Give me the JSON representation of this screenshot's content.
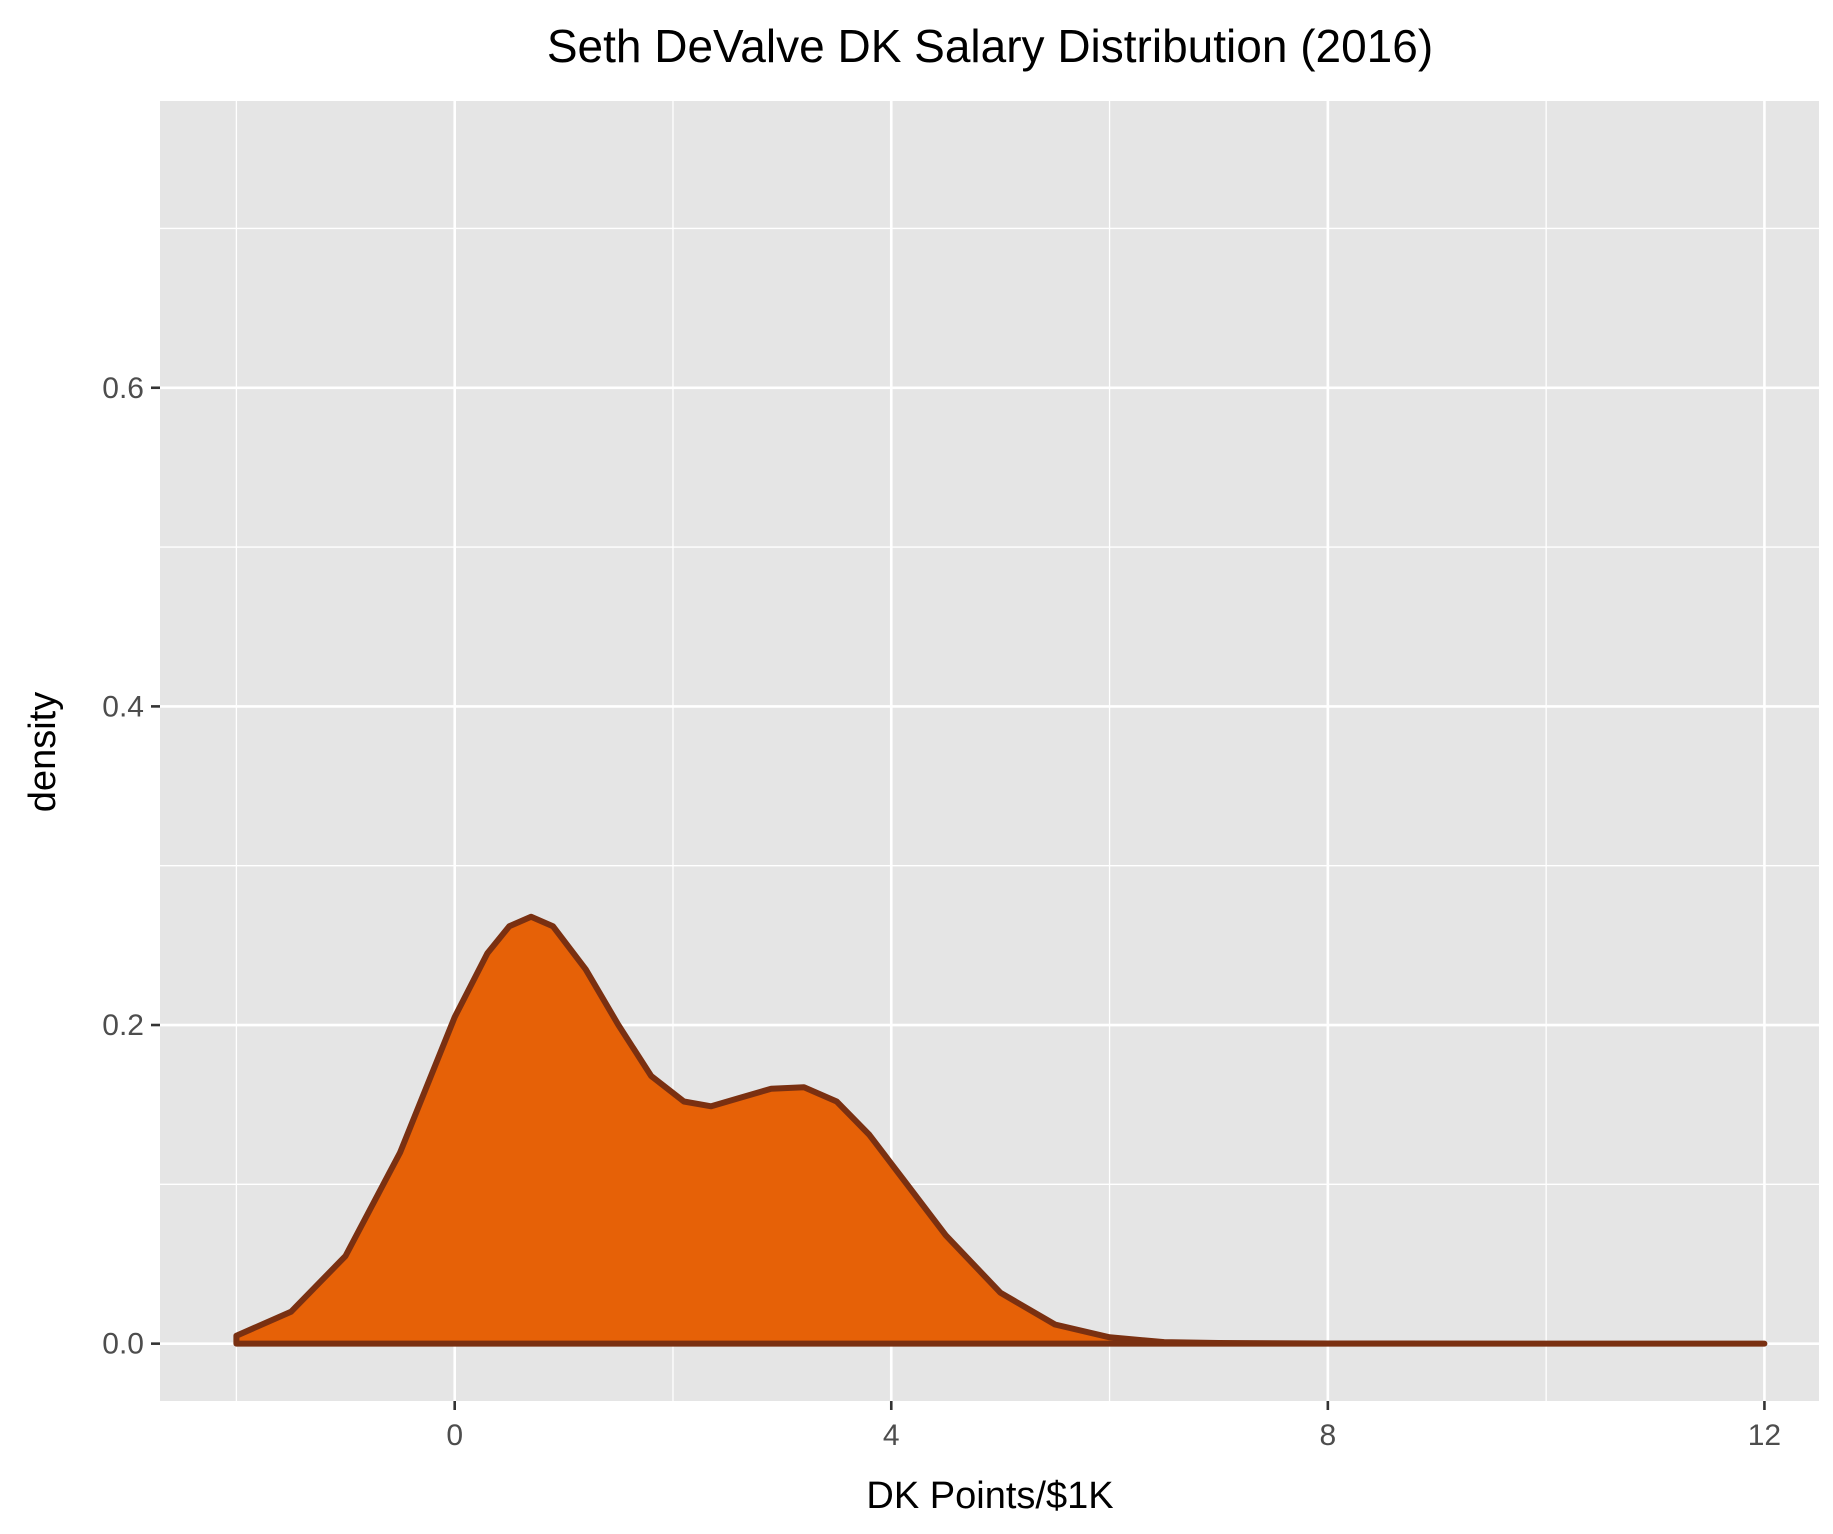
{
  "chart_data": {
    "type": "area",
    "title": "Seth DeValve DK Salary Distribution (2016)",
    "xlabel": "DK Points/$1K",
    "ylabel": "density",
    "xlim": [
      -2.7,
      12.5
    ],
    "ylim": [
      -0.036,
      0.78
    ],
    "x_ticks": [
      0,
      4,
      8,
      12
    ],
    "x_tick_labels": [
      "0",
      "4",
      "8",
      "12"
    ],
    "y_ticks": [
      0.0,
      0.2,
      0.4,
      0.6
    ],
    "y_tick_labels": [
      "0.0",
      "0.2",
      "0.4",
      "0.6"
    ],
    "x_minor_gridlines": [
      -2,
      2,
      6,
      10
    ],
    "y_minor_gridlines": [
      0.1,
      0.3,
      0.5,
      0.7
    ],
    "grid": true,
    "legend": "none",
    "series": [
      {
        "x": [
          -2.0,
          -1.5,
          -1.0,
          -0.5,
          0.0,
          0.3,
          0.5,
          0.7,
          0.9,
          1.2,
          1.5,
          1.8,
          2.1,
          2.35,
          2.6,
          2.9,
          3.2,
          3.5,
          3.8,
          4.1,
          4.5,
          5.0,
          5.5,
          6.0,
          6.5,
          7.0,
          8.0,
          10.0,
          12.0
        ],
        "y": [
          0.005,
          0.02,
          0.055,
          0.12,
          0.205,
          0.245,
          0.262,
          0.268,
          0.262,
          0.235,
          0.2,
          0.168,
          0.152,
          0.149,
          0.154,
          0.16,
          0.161,
          0.152,
          0.131,
          0.104,
          0.068,
          0.032,
          0.012,
          0.004,
          0.001,
          0.0004,
          0.0001,
          0.0,
          0.0
        ]
      }
    ],
    "colors": {
      "fill": "#E66107",
      "outline": "#7A3011",
      "panel_background": "#E5E5E5",
      "grid": "#FFFFFF"
    }
  }
}
